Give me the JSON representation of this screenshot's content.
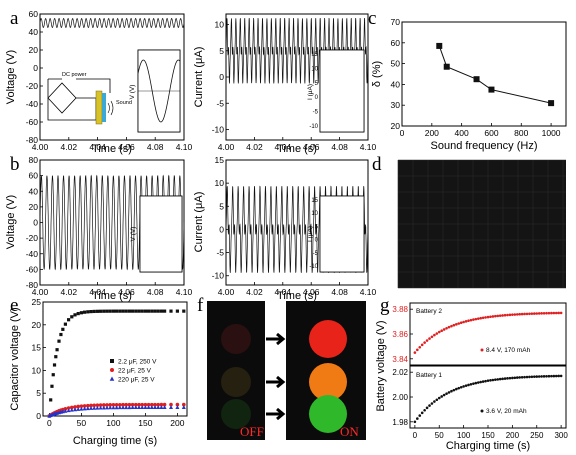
{
  "panel_labels": {
    "a": "a",
    "b": "b",
    "c": "c",
    "d": "d",
    "e": "e",
    "f": "f",
    "g": "g"
  },
  "photo_f": {
    "off_label": "OFF",
    "on_label": "ON",
    "lights_on": [
      "#e8231a",
      "#f07a14",
      "#2fb82a"
    ]
  },
  "inset_a": {
    "dc_label": "DC power",
    "sound_label": "Sound"
  },
  "colors": {
    "black": "#111111",
    "red": "#e02020",
    "blue": "#2233cc",
    "on_red": "#e8231a",
    "on_orange": "#f07a14",
    "on_green": "#2fb82a",
    "led": "#ff6a2a"
  },
  "chart_data": [
    {
      "id": "a_voltage",
      "type": "line",
      "xlabel": "Time (s)",
      "ylabel": "Voltage (V)",
      "xlim": [
        4.0,
        4.1
      ],
      "ylim": [
        -80,
        60
      ],
      "xticks": [
        "4.00",
        "4.02",
        "4.04",
        "4.06",
        "4.08",
        "4.10"
      ],
      "yticks": [
        "-80",
        "-60",
        "-40",
        "-20",
        "0",
        "20",
        "40",
        "60"
      ],
      "waveform": {
        "center": 50,
        "amplitude": 5,
        "cycles": 32
      }
    },
    {
      "id": "a_current",
      "type": "line",
      "xlabel": "Time (s)",
      "ylabel": "Current (μA)",
      "xlim": [
        4.0,
        4.1
      ],
      "ylim": [
        -12,
        12
      ],
      "xticks": [
        "4.00",
        "4.02",
        "4.04",
        "4.06",
        "4.08",
        "4.10"
      ],
      "yticks": [
        "-10",
        "-5",
        "0",
        "5",
        "10"
      ],
      "waveform": {
        "center": 5,
        "amplitude": 6,
        "cycles": 32
      }
    },
    {
      "id": "a_inset_voltage",
      "type": "line",
      "ylabel": "V (V)"
    },
    {
      "id": "a_inset_current",
      "type": "line",
      "ylabel": "I (μA)",
      "yticks": [
        "15",
        "10",
        "5",
        "0",
        "-5",
        "-10"
      ]
    },
    {
      "id": "b_voltage",
      "type": "line",
      "xlabel": "Time (s)",
      "ylabel": "Voltage (V)",
      "xlim": [
        4.0,
        4.1
      ],
      "ylim": [
        -80,
        80
      ],
      "xticks": [
        "4.00",
        "4.02",
        "4.04",
        "4.06",
        "4.08",
        "4.10"
      ],
      "yticks": [
        "-80",
        "-60",
        "-40",
        "-20",
        "0",
        "20",
        "40",
        "60",
        "80"
      ],
      "waveform": {
        "center": 0,
        "amplitude": 60,
        "cycles": 26
      }
    },
    {
      "id": "b_current",
      "type": "line",
      "xlabel": "Time (s)",
      "ylabel": "Current (μA)",
      "xlim": [
        4.0,
        4.1
      ],
      "ylim": [
        -12,
        15
      ],
      "xticks": [
        "4.00",
        "4.02",
        "4.04",
        "4.06",
        "4.08",
        "4.10"
      ],
      "yticks": [
        "-10",
        "-5",
        "0",
        "5",
        "10",
        "15"
      ],
      "waveform": {
        "center": 0,
        "amplitude": 9,
        "cycles": 26
      }
    },
    {
      "id": "b_inset_voltage",
      "type": "line",
      "ylabel": "V (V)"
    },
    {
      "id": "b_inset_current",
      "type": "line",
      "ylabel": "I (μA)",
      "yticks": [
        "15",
        "10",
        "5",
        "0",
        "-5",
        "-10"
      ]
    },
    {
      "id": "c_delta",
      "type": "line",
      "xlabel": "Sound frequency (Hz)",
      "ylabel": "δ (%)",
      "xlim": [
        0,
        1100
      ],
      "ylim": [
        20,
        70
      ],
      "xticks": [
        "0",
        "200",
        "400",
        "600",
        "800",
        "1000"
      ],
      "yticks": [
        "20",
        "30",
        "40",
        "50",
        "60",
        "70"
      ],
      "x": [
        250,
        300,
        500,
        600,
        1000
      ],
      "y": [
        58.5,
        48.5,
        42.5,
        37.5,
        31
      ]
    },
    {
      "id": "e_capacitor",
      "type": "scatter",
      "xlabel": "Charging time (s)",
      "ylabel": "Capacitor voltage (V)",
      "xlim": [
        -10,
        215
      ],
      "ylim": [
        0,
        25
      ],
      "xticks": [
        "0",
        "50",
        "100",
        "150",
        "200"
      ],
      "yticks": [
        "0",
        "5",
        "10",
        "15",
        "20",
        "25"
      ],
      "series": [
        {
          "name": "2.2 μF, 250 V",
          "color": "#111111",
          "marker": "square",
          "saturation": 23,
          "tau": 12
        },
        {
          "name": "22 μF, 25 V",
          "color": "#e02020",
          "marker": "circle",
          "saturation": 2.5,
          "tau": 25
        },
        {
          "name": "220 μF, 25 V",
          "color": "#2233cc",
          "marker": "triangle",
          "saturation": 1.9,
          "tau": 30
        }
      ]
    },
    {
      "id": "g_battery2",
      "type": "line",
      "legend": "Battery 2",
      "annotation": "8.4 V, 170 mAh",
      "ylim": [
        3.835,
        3.885
      ],
      "yticks": [
        "3.84",
        "3.86",
        "3.88"
      ],
      "start": 3.845,
      "end": 3.877,
      "color": "#e02020"
    },
    {
      "id": "g_battery1",
      "type": "line",
      "legend": "Battery 1",
      "annotation": "3.6 V, 20 mAh",
      "ylim": [
        1.975,
        2.025
      ],
      "yticks": [
        "1.98",
        "2.00",
        "2.02"
      ],
      "start": 1.98,
      "end": 2.017,
      "color": "#111111"
    },
    {
      "id": "g_axes",
      "xlabel": "Charging time (s)",
      "ylabel": "Battery voltage (V)",
      "xlim": [
        -10,
        310
      ],
      "xticks": [
        "0",
        "50",
        "100",
        "150",
        "200",
        "250",
        "300"
      ]
    }
  ]
}
